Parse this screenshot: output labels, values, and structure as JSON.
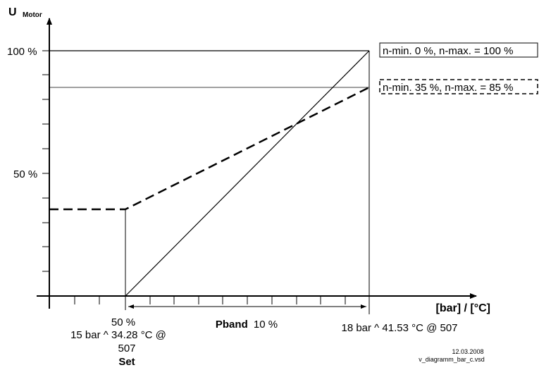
{
  "y_axis": {
    "label": "U",
    "label_sub": "Motor",
    "tick_100": "100 %",
    "tick_50": "50 %"
  },
  "x_axis": {
    "unit_label": "[bar] / [°C]"
  },
  "markers": {
    "set_percent": "50 %",
    "set_line1": "15 bar ^ 34.28 °C @",
    "set_line2": "507",
    "set_caption": "Set",
    "end_label": "18 bar ^ 41.53 °C @ 507"
  },
  "pband": {
    "bold": "Pband",
    "value": "10 %"
  },
  "legend": {
    "solid": "n-min. 0 %, n-max. = 100 %",
    "dashed": "n-min. 35 %, n-max. = 85 %"
  },
  "footer": {
    "date": "12.03.2008",
    "file": "v_diagramm_bar_c.vsd"
  },
  "chart_data": {
    "type": "line",
    "xlabel": "[bar] / [°C]",
    "ylabel": "U Motor",
    "x_markers": [
      "15 bar ^ 34.28 °C @ 507",
      "18 bar ^ 41.53 °C @ 507"
    ],
    "y_ticks": [
      "50 %",
      "100 %"
    ],
    "series": [
      {
        "name": "n-min. 0 %, n-max. = 100 %",
        "style": "solid",
        "points": [
          {
            "x": "15 bar",
            "y": 0
          },
          {
            "x": "18 bar",
            "y": 100
          }
        ]
      },
      {
        "name": "n-min. 35 %, n-max. = 85 %",
        "style": "dashed",
        "points": [
          {
            "x": "0",
            "y": 35
          },
          {
            "x": "15 bar",
            "y": 35
          },
          {
            "x": "18 bar",
            "y": 85
          }
        ]
      }
    ]
  }
}
